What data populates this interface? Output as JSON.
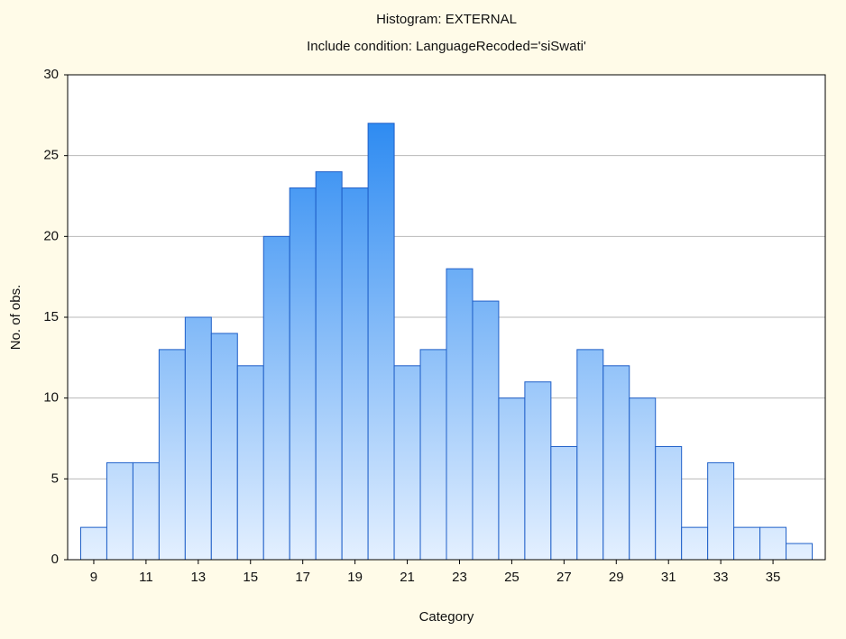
{
  "chart_data": {
    "type": "histogram",
    "title": "Histogram: EXTERNAL",
    "subtitle": "Include condition: LanguageRecoded='siSwati'",
    "x_label": "Category",
    "y_label": "No. of obs.",
    "bins": [
      8.5,
      9.5,
      10.5,
      11.5,
      12.5,
      13.5,
      14.5,
      15.5,
      16.5,
      17.5,
      18.5,
      19.5,
      20.5,
      21.5,
      22.5,
      23.5,
      24.5,
      25.5,
      26.5,
      27.5,
      28.5,
      29.5,
      30.5,
      31.5,
      32.5,
      33.5,
      34.5,
      35.5,
      36.5
    ],
    "counts": [
      2,
      6,
      6,
      13,
      15,
      14,
      12,
      20,
      23,
      24,
      23,
      27,
      12,
      13,
      18,
      16,
      10,
      11,
      7,
      13,
      12,
      10,
      7,
      2,
      6,
      2,
      2,
      1
    ],
    "color": "#1a80f0",
    "xlim": [
      8,
      37
    ],
    "xticks": [
      9,
      11,
      13,
      15,
      17,
      19,
      21,
      23,
      25,
      27,
      29,
      31,
      33,
      35
    ],
    "ylim": [
      0,
      30
    ],
    "yticks": [
      0,
      5,
      10,
      15,
      20,
      25,
      30
    ],
    "grid": true
  }
}
